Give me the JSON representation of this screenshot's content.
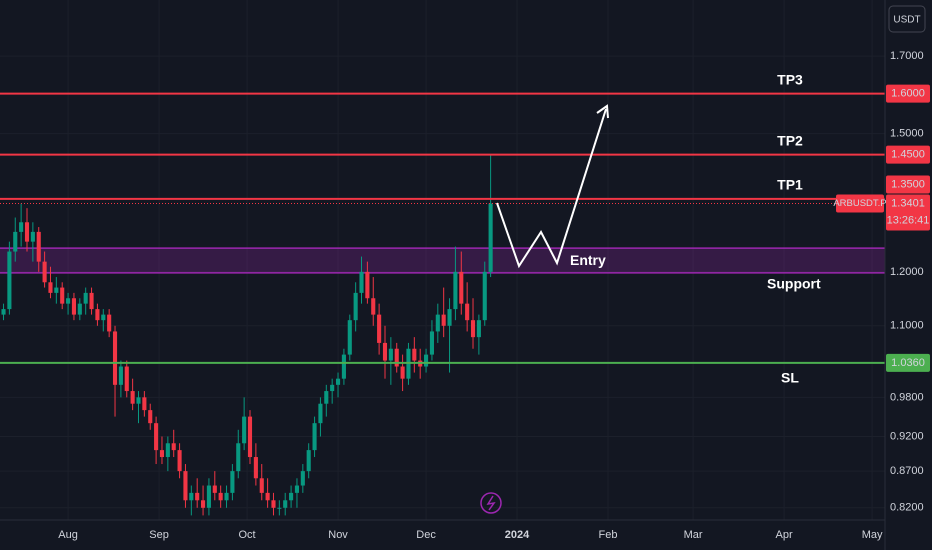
{
  "chart_data": {
    "type": "candlestick",
    "symbol": "ARBUSDT.P",
    "currency": "USDT",
    "countdown": "13:26:41",
    "log_scale": true,
    "grid": true,
    "up_color": "#089981",
    "down_color": "#f23645",
    "ylim": [
      0.804,
      1.861
    ],
    "yticks": [
      {
        "value": 1.7,
        "label": "1.7000"
      },
      {
        "value": 1.5,
        "label": "1.5000"
      },
      {
        "value": 1.2,
        "label": "1.2000"
      },
      {
        "value": 1.1,
        "label": "1.1000"
      },
      {
        "value": 0.98,
        "label": "0.9800"
      },
      {
        "value": 0.92,
        "label": "0.9200"
      },
      {
        "value": 0.87,
        "label": "0.8700"
      },
      {
        "value": 0.82,
        "label": "0.8200"
      }
    ],
    "xlim": [
      -23.2,
      278.4
    ],
    "xticks": [
      {
        "value": 0,
        "label": "Aug"
      },
      {
        "value": 31,
        "label": "Sep"
      },
      {
        "value": 61,
        "label": "Oct"
      },
      {
        "value": 92,
        "label": "Nov"
      },
      {
        "value": 122,
        "label": "Dec"
      },
      {
        "value": 153,
        "label": "2024"
      },
      {
        "value": 184,
        "label": "Feb"
      },
      {
        "value": 213,
        "label": "Mar"
      },
      {
        "value": 244,
        "label": "Apr"
      },
      {
        "value": 274,
        "label": "May"
      }
    ],
    "candles": {
      "x": [
        -22,
        -20,
        -18,
        -16,
        -14,
        -12,
        -10,
        -8,
        -6,
        -4,
        -2,
        0,
        2,
        4,
        6,
        8,
        10,
        12,
        14,
        16,
        18,
        20,
        22,
        24,
        26,
        28,
        30,
        32,
        34,
        36,
        38,
        40,
        42,
        44,
        46,
        48,
        50,
        52,
        54,
        56,
        58,
        60,
        62,
        64,
        66,
        68,
        70,
        72,
        74,
        76,
        78,
        80,
        82,
        84,
        86,
        88,
        90,
        92,
        94,
        96,
        98,
        100,
        102,
        104,
        106,
        108,
        110,
        112,
        114,
        116,
        118,
        120,
        122,
        124,
        126,
        128,
        130,
        132,
        134,
        136,
        138,
        140,
        142,
        144
      ],
      "open": [
        1.12,
        1.13,
        1.24,
        1.28,
        1.3,
        1.26,
        1.28,
        1.22,
        1.18,
        1.16,
        1.17,
        1.14,
        1.15,
        1.12,
        1.14,
        1.16,
        1.13,
        1.11,
        1.12,
        1.09,
        1.0,
        1.03,
        0.99,
        0.97,
        0.98,
        0.96,
        0.94,
        0.9,
        0.89,
        0.91,
        0.9,
        0.87,
        0.83,
        0.84,
        0.83,
        0.82,
        0.85,
        0.84,
        0.83,
        0.84,
        0.87,
        0.91,
        0.95,
        0.89,
        0.86,
        0.84,
        0.83,
        0.82,
        0.82,
        0.83,
        0.84,
        0.85,
        0.87,
        0.9,
        0.94,
        0.97,
        0.99,
        1.0,
        1.01,
        1.05,
        1.11,
        1.16,
        1.2,
        1.15,
        1.12,
        1.07,
        1.04,
        1.06,
        1.03,
        1.01,
        1.06,
        1.04,
        1.03,
        1.05,
        1.09,
        1.12,
        1.1,
        1.13,
        1.2,
        1.14,
        1.11,
        1.08,
        1.11,
        1.2
      ],
      "high": [
        1.14,
        1.26,
        1.31,
        1.34,
        1.33,
        1.3,
        1.29,
        1.24,
        1.21,
        1.19,
        1.18,
        1.16,
        1.16,
        1.15,
        1.17,
        1.17,
        1.14,
        1.13,
        1.13,
        1.1,
        1.04,
        1.04,
        1.01,
        0.99,
        0.99,
        0.97,
        0.95,
        0.92,
        0.92,
        0.93,
        0.91,
        0.88,
        0.85,
        0.86,
        0.85,
        0.86,
        0.87,
        0.85,
        0.85,
        0.88,
        0.93,
        0.98,
        0.96,
        0.91,
        0.88,
        0.86,
        0.84,
        0.83,
        0.84,
        0.85,
        0.86,
        0.88,
        0.91,
        0.95,
        0.98,
        1.0,
        1.01,
        1.02,
        1.06,
        1.12,
        1.18,
        1.23,
        1.22,
        1.19,
        1.14,
        1.1,
        1.08,
        1.07,
        1.05,
        1.07,
        1.08,
        1.06,
        1.06,
        1.11,
        1.14,
        1.17,
        1.15,
        1.25,
        1.24,
        1.18,
        1.15,
        1.12,
        1.22,
        1.45
      ],
      "low": [
        1.11,
        1.12,
        1.22,
        1.25,
        1.24,
        1.22,
        1.2,
        1.17,
        1.15,
        1.14,
        1.13,
        1.12,
        1.11,
        1.11,
        1.12,
        1.12,
        1.1,
        1.09,
        1.08,
        0.95,
        0.98,
        0.98,
        0.96,
        0.94,
        0.95,
        0.93,
        0.88,
        0.88,
        0.87,
        0.89,
        0.86,
        0.82,
        0.81,
        0.82,
        0.81,
        0.81,
        0.83,
        0.82,
        0.82,
        0.83,
        0.86,
        0.9,
        0.88,
        0.85,
        0.83,
        0.82,
        0.81,
        0.81,
        0.81,
        0.82,
        0.82,
        0.84,
        0.86,
        0.89,
        0.92,
        0.95,
        0.97,
        0.98,
        1.0,
        1.04,
        1.09,
        1.14,
        1.14,
        1.1,
        1.05,
        1.01,
        1.0,
        1.02,
        0.99,
        1.0,
        1.02,
        1.01,
        1.02,
        1.04,
        1.07,
        1.08,
        1.02,
        1.11,
        1.12,
        1.09,
        1.06,
        1.05,
        1.1,
        1.19
      ],
      "close": [
        1.13,
        1.24,
        1.28,
        1.3,
        1.26,
        1.28,
        1.22,
        1.18,
        1.16,
        1.17,
        1.14,
        1.15,
        1.12,
        1.14,
        1.16,
        1.13,
        1.11,
        1.12,
        1.09,
        1.0,
        1.03,
        0.99,
        0.97,
        0.98,
        0.96,
        0.94,
        0.9,
        0.89,
        0.91,
        0.9,
        0.87,
        0.83,
        0.84,
        0.83,
        0.82,
        0.85,
        0.84,
        0.83,
        0.84,
        0.87,
        0.91,
        0.95,
        0.89,
        0.86,
        0.84,
        0.83,
        0.82,
        0.82,
        0.83,
        0.84,
        0.85,
        0.87,
        0.9,
        0.94,
        0.97,
        0.99,
        1.0,
        1.01,
        1.05,
        1.11,
        1.16,
        1.2,
        1.15,
        1.12,
        1.07,
        1.04,
        1.06,
        1.03,
        1.01,
        1.06,
        1.04,
        1.03,
        1.05,
        1.09,
        1.12,
        1.1,
        1.13,
        1.2,
        1.14,
        1.11,
        1.08,
        1.11,
        1.2,
        1.3401
      ]
    },
    "levels": [
      {
        "name": "TP3",
        "value": 1.6,
        "label": "1.6000",
        "color": "#f23645"
      },
      {
        "name": "TP2",
        "value": 1.45,
        "label": "1.4500",
        "color": "#f23645"
      },
      {
        "name": "TP1",
        "value": 1.35,
        "label": "1.3500",
        "color": "#f23645"
      },
      {
        "name": "SL",
        "value": 1.036,
        "label": "1.0360",
        "color": "#4caf50"
      }
    ],
    "zone": {
      "label": "Entry",
      "name": "Support",
      "range": [
        1.198,
        1.247
      ],
      "color": "#9c27b0"
    },
    "last_price": {
      "value": 1.3401,
      "label": "1.3401",
      "color": "#f23645"
    }
  }
}
